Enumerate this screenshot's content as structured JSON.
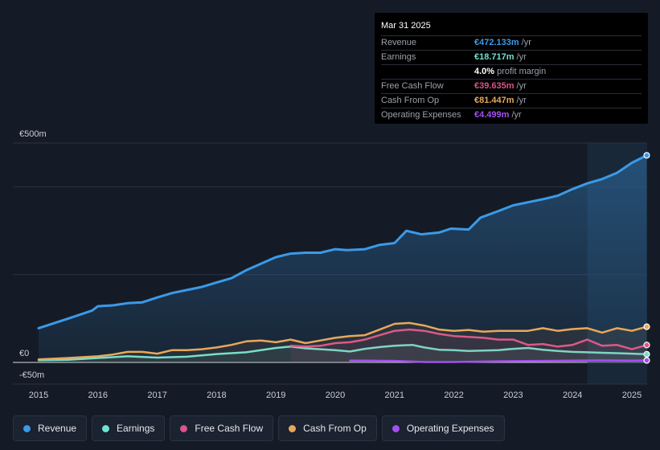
{
  "tooltip": {
    "date": "Mar 31 2025",
    "rows": [
      {
        "label": "Revenue",
        "value": "€472.133m",
        "unit": "/yr",
        "color": "#3b9ae8"
      },
      {
        "label": "Earnings",
        "value": "€18.717m",
        "unit": "/yr",
        "color": "#6fe3d4"
      },
      {
        "label": "",
        "value": "4.0%",
        "unit": "profit margin",
        "color": "#ffffff"
      },
      {
        "label": "Free Cash Flow",
        "value": "€39.635m",
        "unit": "/yr",
        "color": "#d9548a"
      },
      {
        "label": "Cash From Op",
        "value": "€81.447m",
        "unit": "/yr",
        "color": "#e8a85a"
      },
      {
        "label": "Operating Expenses",
        "value": "€4.499m",
        "unit": "/yr",
        "color": "#a64ff0"
      }
    ]
  },
  "legend": [
    {
      "label": "Revenue",
      "color": "#3b9ae8"
    },
    {
      "label": "Earnings",
      "color": "#6fe3d4"
    },
    {
      "label": "Free Cash Flow",
      "color": "#d9548a"
    },
    {
      "label": "Cash From Op",
      "color": "#e8a85a"
    },
    {
      "label": "Operating Expenses",
      "color": "#a64ff0"
    }
  ],
  "chart_data": {
    "type": "line",
    "y_label_top": "€500m",
    "y_label_zero": "€0",
    "y_label_bottom": "-€50m",
    "ylim": [
      -50,
      500
    ],
    "xlim": [
      2015.0,
      2025.25
    ],
    "x_ticks": [
      "2015",
      "2016",
      "2017",
      "2018",
      "2019",
      "2020",
      "2021",
      "2022",
      "2023",
      "2024",
      "2025"
    ],
    "highlight_start": 2024.25,
    "series": [
      {
        "name": "Revenue",
        "color": "#3b9ae8",
        "fill": true,
        "x": [
          2015.0,
          2015.5,
          2015.9,
          2016.0,
          2016.25,
          2016.5,
          2016.75,
          2017.0,
          2017.25,
          2017.5,
          2017.75,
          2018.0,
          2018.25,
          2018.5,
          2018.75,
          2019.0,
          2019.25,
          2019.5,
          2019.75,
          2020.0,
          2020.2,
          2020.5,
          2020.75,
          2021.0,
          2021.2,
          2021.45,
          2021.75,
          2021.95,
          2022.25,
          2022.45,
          2022.75,
          2023.0,
          2023.25,
          2023.5,
          2023.75,
          2024.0,
          2024.25,
          2024.5,
          2024.75,
          2025.0,
          2025.25
        ],
        "values": [
          78,
          100,
          118,
          128,
          130,
          135,
          137,
          148,
          158,
          165,
          172,
          182,
          192,
          210,
          225,
          240,
          248,
          250,
          250,
          258,
          256,
          258,
          268,
          272,
          300,
          292,
          296,
          305,
          303,
          330,
          345,
          358,
          365,
          372,
          380,
          395,
          408,
          418,
          432,
          455,
          472
        ]
      },
      {
        "name": "Earnings",
        "color": "#6fe3d4",
        "fill": false,
        "x": [
          2015.0,
          2015.5,
          2016.0,
          2016.5,
          2017.0,
          2017.5,
          2018.0,
          2018.5,
          2019.0,
          2019.25,
          2019.5,
          2020.0,
          2020.25,
          2020.5,
          2020.75,
          2021.0,
          2021.3,
          2021.5,
          2021.75,
          2022.0,
          2022.25,
          2022.5,
          2022.75,
          2023.0,
          2023.25,
          2023.5,
          2023.75,
          2024.0,
          2024.25,
          2024.5,
          2024.75,
          2025.0,
          2025.25
        ],
        "values": [
          5,
          6,
          10,
          14,
          11,
          13,
          19,
          23,
          33,
          36,
          32,
          28,
          25,
          31,
          35,
          38,
          40,
          34,
          29,
          28,
          26,
          27,
          28,
          31,
          33,
          29,
          26,
          24,
          23,
          22,
          21,
          20,
          18.7
        ]
      },
      {
        "name": "Free Cash Flow",
        "color": "#d9548a",
        "fill": false,
        "x": [
          2019.25,
          2019.5,
          2019.75,
          2020.0,
          2020.25,
          2020.5,
          2020.75,
          2021.0,
          2021.25,
          2021.5,
          2021.75,
          2022.0,
          2022.25,
          2022.5,
          2022.75,
          2023.0,
          2023.25,
          2023.5,
          2023.75,
          2024.0,
          2024.25,
          2024.5,
          2024.75,
          2025.0,
          2025.25
        ],
        "values": [
          38,
          36,
          38,
          44,
          46,
          52,
          62,
          72,
          75,
          72,
          65,
          60,
          58,
          56,
          52,
          52,
          40,
          42,
          36,
          40,
          52,
          38,
          40,
          30,
          39.6
        ]
      },
      {
        "name": "Cash From Op",
        "color": "#e8a85a",
        "fill": false,
        "x": [
          2015.0,
          2015.5,
          2016.0,
          2016.25,
          2016.5,
          2016.75,
          2017.0,
          2017.25,
          2017.5,
          2017.75,
          2018.0,
          2018.25,
          2018.5,
          2018.75,
          2019.0,
          2019.25,
          2019.5,
          2019.75,
          2020.0,
          2020.25,
          2020.5,
          2020.75,
          2021.0,
          2021.25,
          2021.5,
          2021.75,
          2022.0,
          2022.25,
          2022.5,
          2022.75,
          2023.0,
          2023.25,
          2023.5,
          2023.75,
          2024.0,
          2024.25,
          2024.5,
          2024.75,
          2025.0,
          2025.25
        ],
        "values": [
          7,
          10,
          14,
          18,
          24,
          24,
          20,
          28,
          28,
          30,
          34,
          40,
          48,
          50,
          46,
          52,
          44,
          50,
          56,
          60,
          62,
          75,
          88,
          90,
          84,
          75,
          72,
          74,
          70,
          72,
          72,
          72,
          78,
          72,
          76,
          78,
          68,
          78,
          72,
          81.4
        ]
      },
      {
        "name": "Operating Expenses",
        "color": "#a64ff0",
        "fill": false,
        "x": [
          2020.25,
          2020.5,
          2021.0,
          2021.5,
          2022.0,
          2022.5,
          2023.0,
          2023.5,
          2024.0,
          2024.5,
          2025.0,
          2025.25
        ],
        "values": [
          4,
          4,
          3.5,
          1,
          1,
          2,
          3,
          3.5,
          4,
          4.5,
          4.2,
          4.5
        ]
      }
    ]
  }
}
